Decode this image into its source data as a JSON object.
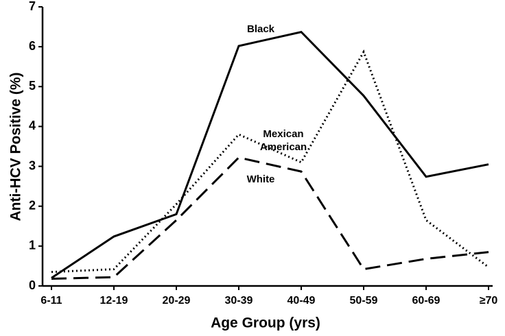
{
  "chart_data": {
    "type": "line",
    "x_label": "Age Group (yrs)",
    "y_label": "Anti-HCV Positive (%)",
    "categories": [
      "6-11",
      "12-19",
      "20-29",
      "30-39",
      "40-49",
      "50-59",
      "60-69",
      "≥70"
    ],
    "series": [
      {
        "name": "Black",
        "color": "#000000",
        "line_style": "solid",
        "values": [
          0.2,
          1.24,
          1.8,
          6.02,
          6.37,
          4.77,
          2.74,
          3.05
        ]
      },
      {
        "name": "Mexican American",
        "color": "#000000",
        "line_style": "dotted",
        "values": [
          0.35,
          0.42,
          2.05,
          3.8,
          3.1,
          5.87,
          1.65,
          0.47
        ]
      },
      {
        "name": "White",
        "color": "#000000",
        "line_style": "dashed",
        "values": [
          0.18,
          0.22,
          1.65,
          3.22,
          2.87,
          0.42,
          0.68,
          0.85
        ]
      }
    ],
    "ylim": [
      0,
      7
    ],
    "yticks": [
      0,
      1,
      2,
      3,
      4,
      5,
      6,
      7
    ],
    "grid": false
  }
}
